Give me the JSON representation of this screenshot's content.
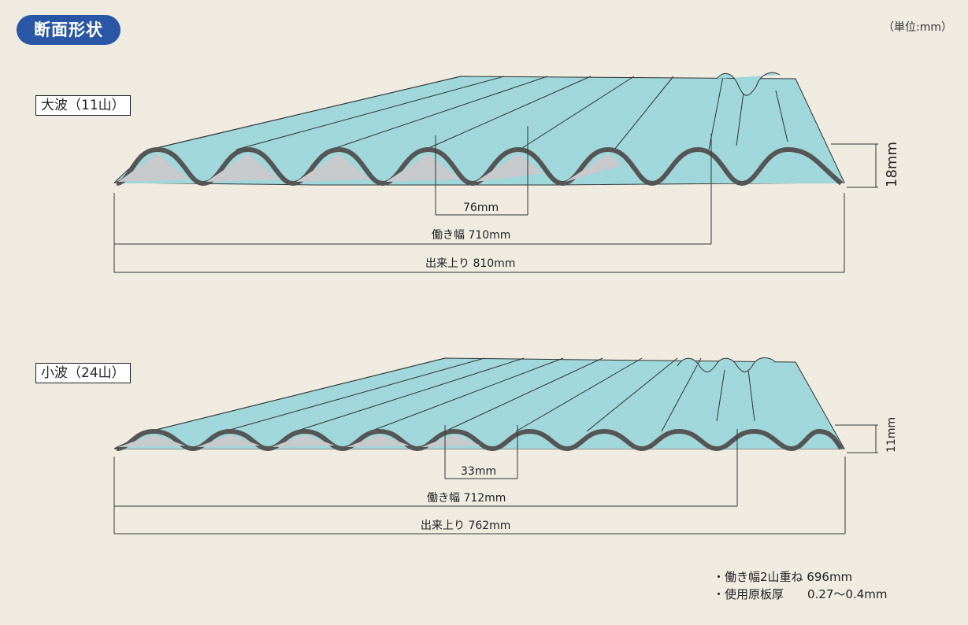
{
  "header": {
    "title": "断面形状",
    "unit": "（単位:mm）"
  },
  "large_wave": {
    "label": "大波（11山）",
    "pitch": "76mm",
    "working_width": "働き幅 710mm",
    "finished_width": "出来上り 810mm",
    "height": "18mm"
  },
  "small_wave": {
    "label": "小波（24山）",
    "pitch": "33mm",
    "working_width": "働き幅 712mm",
    "finished_width": "出来上り 762mm",
    "height": "11mm"
  },
  "notes": {
    "line1": "・働き幅2山重ね 696mm",
    "line2": "・使用原板厚　　0.27〜0.4mm"
  },
  "colors": {
    "sheet_top": "#9fd7da",
    "sheet_edge": "#555555",
    "underside": "#c7c9cd",
    "badge": "#2a57a5"
  }
}
